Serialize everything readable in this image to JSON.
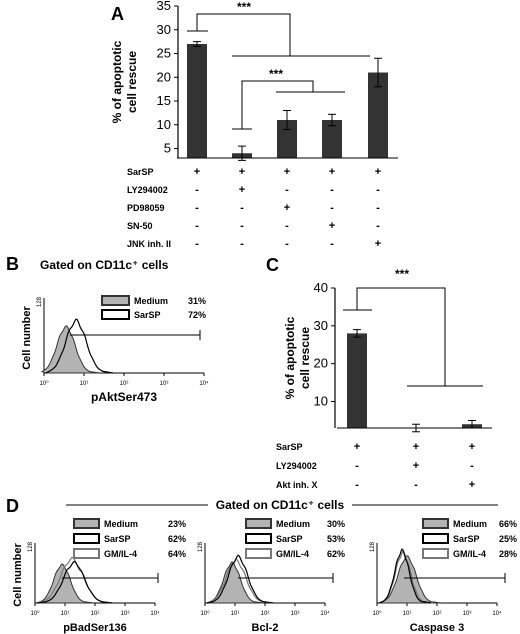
{
  "colors": {
    "bar": "#333333",
    "medium_fill": "#b3b3b3",
    "medium_stroke": "#333333",
    "sarsp": "#000000",
    "gm": "#777777"
  },
  "panel_labels": {
    "a": "A",
    "b": "B",
    "c": "C",
    "d": "D"
  },
  "panel_d_header": "Gated on CD11c⁺ cells",
  "chart_data": [
    {
      "id": "A",
      "type": "bar",
      "ylabel": "% of apoptotic cell rescue",
      "ylim": [
        0,
        35
      ],
      "yticks": [
        5,
        10,
        15,
        20,
        25,
        30,
        35
      ],
      "values": [
        27,
        4,
        11,
        11,
        21
      ],
      "errors": [
        0.5,
        1.5,
        2,
        1.2,
        3
      ],
      "treatments": [
        {
          "name": "SarSP",
          "signs": [
            "+",
            "+",
            "+",
            "+",
            "+"
          ]
        },
        {
          "name": "LY294002",
          "signs": [
            "-",
            "+",
            "-",
            "-",
            "-"
          ]
        },
        {
          "name": "PD98059",
          "signs": [
            "-",
            "-",
            "+",
            "-",
            "-"
          ]
        },
        {
          "name": "SN-50",
          "signs": [
            "-",
            "-",
            "-",
            "+",
            "-"
          ]
        },
        {
          "name": "JNK inh. II",
          "signs": [
            "-",
            "-",
            "-",
            "-",
            "+"
          ]
        }
      ],
      "significance": [
        "***",
        "***"
      ]
    },
    {
      "id": "B",
      "type": "histogram",
      "title": "Gated on CD11c⁺ cells",
      "xlabel": "pAktSer473",
      "ylabel": "Cell number",
      "ymax_label": "128",
      "xticks": [
        "10⁰",
        "10¹",
        "10²",
        "10³",
        "10⁴"
      ],
      "legend": [
        {
          "name": "Medium",
          "value": "31%",
          "style": "filled"
        },
        {
          "name": "SarSP",
          "value": "72%",
          "style": "line"
        }
      ]
    },
    {
      "id": "C",
      "type": "bar",
      "ylabel": "% of apoptotic cell rescue",
      "ylim": [
        0,
        40
      ],
      "yticks": [
        10,
        20,
        30,
        40
      ],
      "values": [
        28,
        3,
        4
      ],
      "errors": [
        1,
        1,
        1
      ],
      "treatments": [
        {
          "name": "SarSP",
          "signs": [
            "+",
            "+",
            "+"
          ]
        },
        {
          "name": "LY294002",
          "signs": [
            "-",
            "+",
            "-"
          ]
        },
        {
          "name": "Akt inh. X",
          "signs": [
            "-",
            "-",
            "+"
          ]
        }
      ],
      "significance": [
        "***"
      ]
    },
    {
      "id": "D1",
      "type": "histogram",
      "xlabel": "pBadSer136",
      "ylabel": "Cell number",
      "ymax_label": "128",
      "xticks": [
        "10⁰",
        "10¹",
        "10²",
        "10³",
        "10⁴"
      ],
      "legend": [
        {
          "name": "Medium",
          "value": "23%",
          "style": "filled"
        },
        {
          "name": "SarSP",
          "value": "62%",
          "style": "line"
        },
        {
          "name": "GM/IL-4",
          "value": "64%",
          "style": "gray"
        }
      ]
    },
    {
      "id": "D2",
      "type": "histogram",
      "xlabel": "Bcl-2",
      "ymax_label": "128",
      "xticks": [
        "10⁰",
        "10¹",
        "10²",
        "10³",
        "10⁴"
      ],
      "legend": [
        {
          "name": "Medium",
          "value": "30%",
          "style": "filled"
        },
        {
          "name": "SarSP",
          "value": "53%",
          "style": "line"
        },
        {
          "name": "GM/IL-4",
          "value": "62%",
          "style": "gray"
        }
      ]
    },
    {
      "id": "D3",
      "type": "histogram",
      "xlabel": "Caspase 3",
      "ymax_label": "128",
      "xticks": [
        "10⁰",
        "10¹",
        "10²",
        "10³",
        "10⁴"
      ],
      "legend": [
        {
          "name": "Medium",
          "value": "66%",
          "style": "filled"
        },
        {
          "name": "SarSP",
          "value": "25%",
          "style": "line"
        },
        {
          "name": "GM/IL-4",
          "value": "28%",
          "style": "gray"
        }
      ]
    }
  ]
}
